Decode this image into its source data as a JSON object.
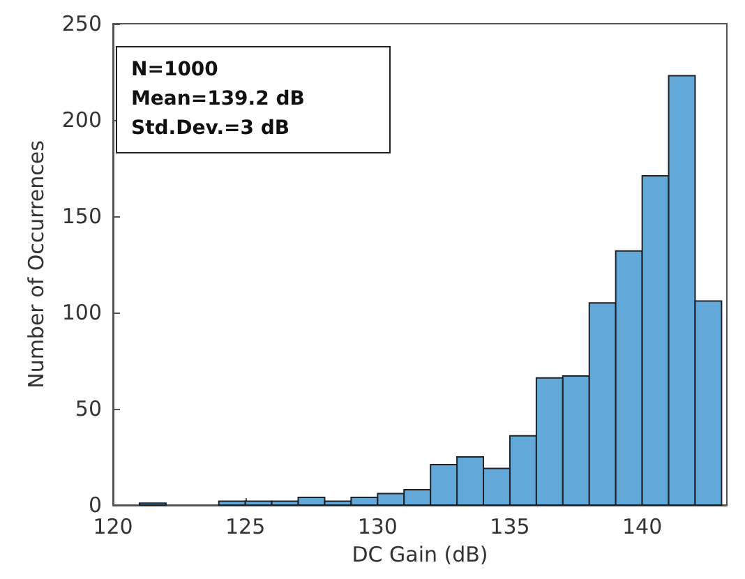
{
  "chart_data": {
    "type": "histogram",
    "xlabel": "DC Gain (dB)",
    "ylabel": "Number of Occurrences",
    "bins": [
      121,
      122,
      123,
      124,
      125,
      126,
      127,
      128,
      129,
      130,
      131,
      132,
      133,
      134,
      135,
      136,
      137,
      138,
      139,
      140,
      141,
      142,
      143
    ],
    "values": [
      1,
      0,
      0,
      2,
      2,
      2,
      4,
      2,
      4,
      6,
      8,
      21,
      25,
      19,
      36,
      66,
      67,
      105,
      132,
      171,
      223,
      106
    ],
    "color": "#62a8d9",
    "xlim": [
      120,
      143.2
    ],
    "xticks": [
      120,
      125,
      130,
      135,
      140
    ],
    "ylim": [
      0,
      250
    ],
    "yticks": [
      0,
      50,
      100,
      150,
      200,
      250
    ],
    "grid": false,
    "annotations": [
      "N=1000",
      "Mean=139.2 dB",
      "Std.Dev.=3 dB"
    ]
  }
}
